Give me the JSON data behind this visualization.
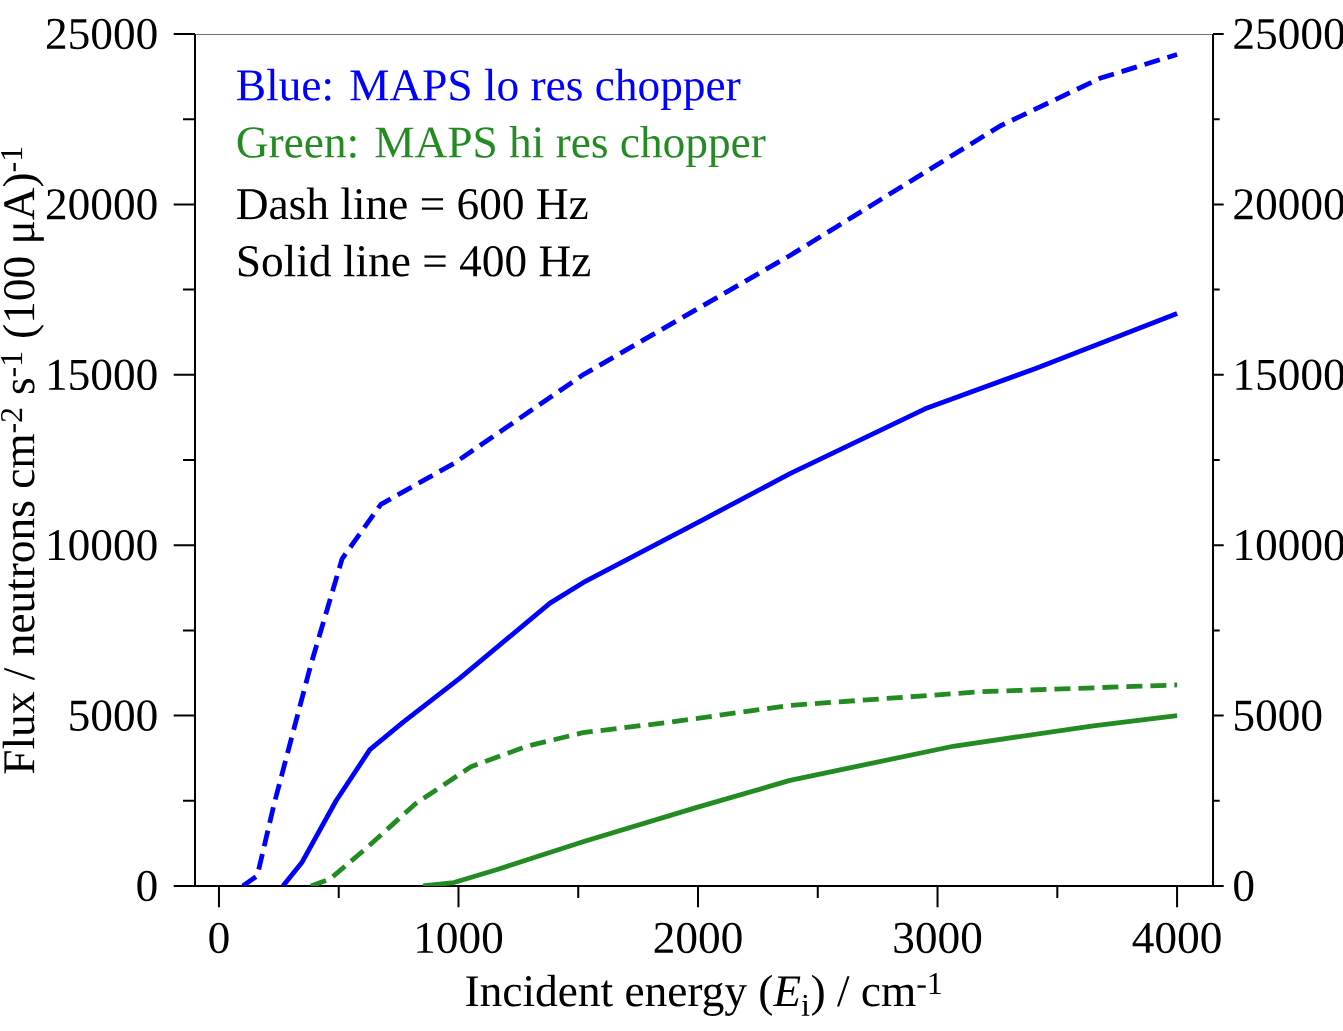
{
  "chart_data": {
    "type": "line",
    "xlabel": "Incident energy (*E*$_{i}$) / cm$^{-1}$",
    "ylabel": "Flux / neutrons cm$^{-2}$ s$^{-1}$ (100 μA)$^{-1}$",
    "annotations": [
      "Blue: MAPS lo res chopper",
      "Green: MAPS hi res chopper",
      "Dash line = 600 Hz",
      "Solid line = 400 Hz"
    ],
    "xlim": [
      -100,
      4150
    ],
    "ylim": [
      0,
      25000
    ],
    "xticks": [
      0,
      1000,
      2000,
      3000,
      4000
    ],
    "yticks": [
      0,
      5000,
      10000,
      15000,
      20000,
      25000
    ],
    "y2lim": [
      0,
      25000
    ],
    "y2ticks": [
      0,
      5000,
      10000,
      15000,
      20000,
      25000
    ],
    "marker": "none",
    "grid": false,
    "series": [
      {
        "color": "#0000ff",
        "line_style": "dashed",
        "x": [
          100,
          160,
          230,
          384,
          514,
          676,
          981,
          1520,
          2384,
          3261,
          3678,
          4000
        ],
        "values": [
          0,
          300,
          2400,
          6500,
          9600,
          11200,
          12400,
          15000,
          18500,
          22300,
          23700,
          24400
        ]
      },
      {
        "color": "#0000ff",
        "line_style": "solid",
        "x": [
          267,
          347,
          489,
          630,
          768,
          1006,
          1382,
          1520,
          2008,
          2384,
          2948,
          3415,
          4000
        ],
        "values": [
          0,
          700,
          2500,
          4000,
          4800,
          6100,
          8300,
          8900,
          10700,
          12100,
          14000,
          15200,
          16800
        ]
      },
      {
        "color": "#228b22",
        "line_style": "dashed",
        "x": [
          384,
          463,
          630,
          818,
          1052,
          1286,
          1520,
          1875,
          2384,
          3182,
          4000
        ],
        "values": [
          0,
          200,
          1200,
          2400,
          3500,
          4100,
          4500,
          4800,
          5300,
          5700,
          5900
        ]
      },
      {
        "color": "#228b22",
        "line_style": "solid",
        "x": [
          852,
          981,
          1169,
          1520,
          1992,
          2384,
          3065,
          3650,
          4000
        ],
        "values": [
          0,
          100,
          500,
          1300,
          2300,
          3100,
          4100,
          4700,
          5000
        ]
      }
    ]
  }
}
